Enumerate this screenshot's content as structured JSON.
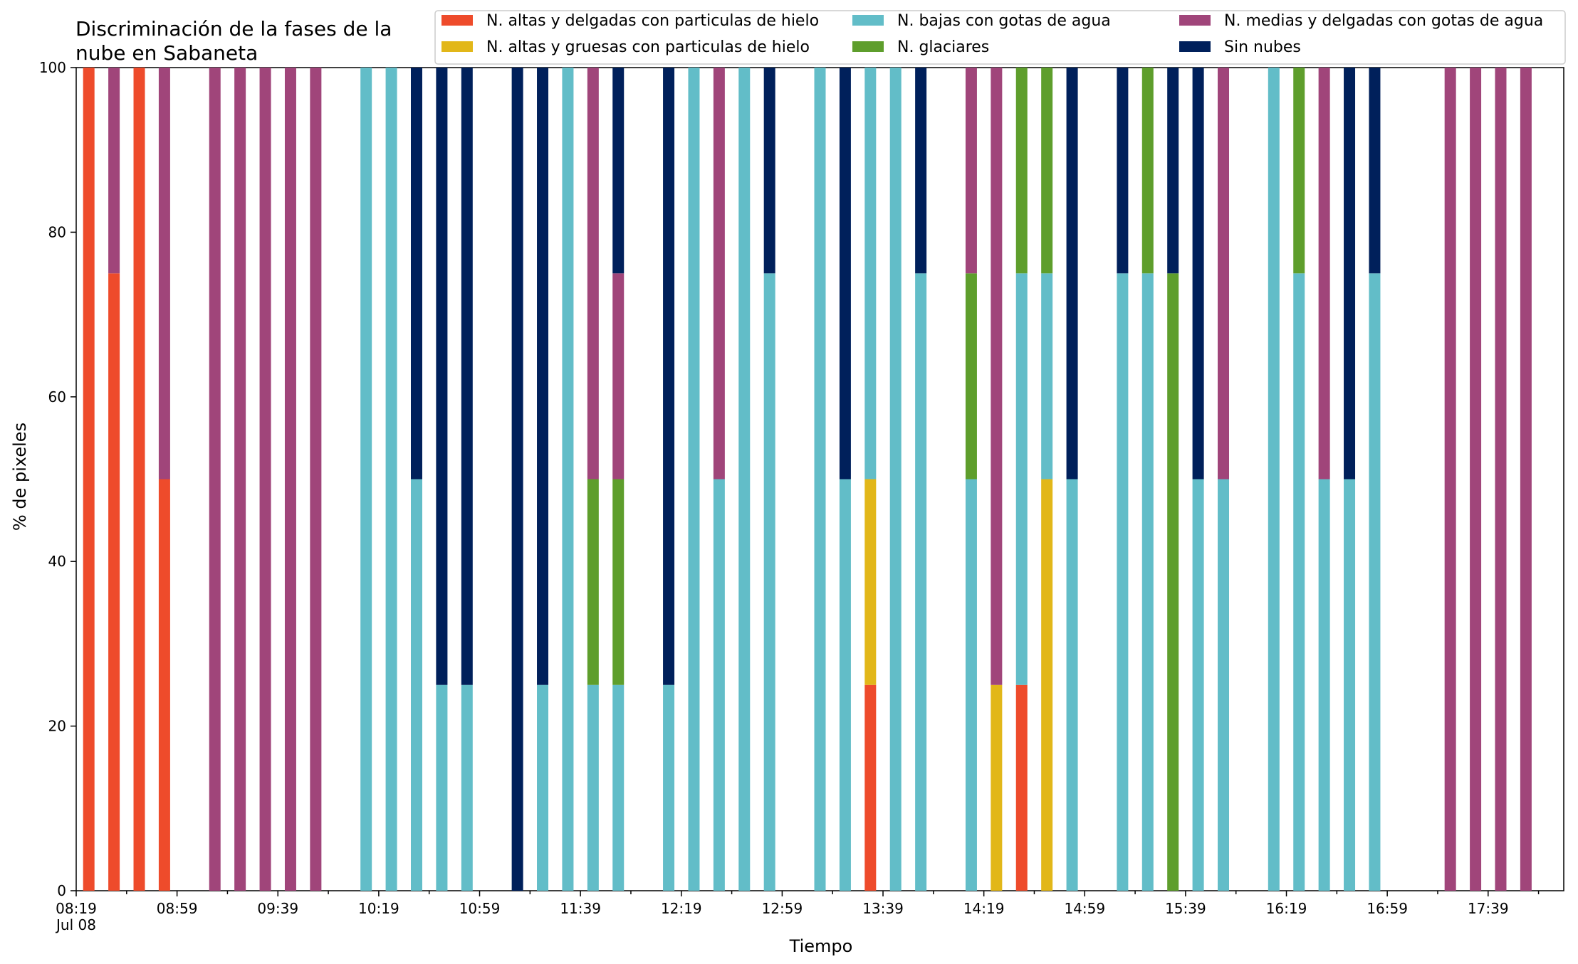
{
  "chart_data": {
    "type": "bar",
    "stacked": true,
    "title_lines": [
      "Discriminación de la fases de la",
      "nube en Sabaneta"
    ],
    "xlabel": "Tiempo",
    "ylabel": "% de pixeles",
    "ylim": [
      0,
      100
    ],
    "yticks": [
      0,
      20,
      40,
      60,
      80,
      100
    ],
    "grid": false,
    "legend_position": "top-right",
    "x_date_label": "Jul 08",
    "xlim": [
      "08:19",
      "18:09"
    ],
    "xticks": [
      "08:19",
      "08:59",
      "09:39",
      "10:19",
      "10:59",
      "11:39",
      "12:19",
      "12:59",
      "13:39",
      "14:19",
      "14:59",
      "15:39",
      "16:19",
      "16:59",
      "17:39"
    ],
    "series": [
      {
        "name": "N. altas y delgadas con particulas de hielo",
        "color": "#ee4b2b"
      },
      {
        "name": "N. altas y gruesas con particulas de hielo",
        "color": "#e2b719"
      },
      {
        "name": "N. bajas con gotas de agua",
        "color": "#62bdc8"
      },
      {
        "name": "N. glaciares",
        "color": "#5e9e2c"
      },
      {
        "name": "N. medias y delgadas con gotas de agua",
        "color": "#a0457a"
      },
      {
        "name": "Sin nubes",
        "color": "#00205b"
      }
    ],
    "bars": [
      {
        "time": "08:24",
        "values": [
          100,
          0,
          0,
          0,
          0,
          0
        ]
      },
      {
        "time": "08:34",
        "values": [
          75,
          0,
          0,
          0,
          25,
          0
        ]
      },
      {
        "time": "08:44",
        "values": [
          100,
          0,
          0,
          0,
          0,
          0
        ]
      },
      {
        "time": "08:54",
        "values": [
          50,
          0,
          0,
          0,
          50,
          0
        ]
      },
      {
        "time": "09:14",
        "values": [
          0,
          0,
          0,
          0,
          100,
          0
        ]
      },
      {
        "time": "09:24",
        "values": [
          0,
          0,
          0,
          0,
          100,
          0
        ]
      },
      {
        "time": "09:34",
        "values": [
          0,
          0,
          0,
          0,
          100,
          0
        ]
      },
      {
        "time": "09:44",
        "values": [
          0,
          0,
          0,
          0,
          100,
          0
        ]
      },
      {
        "time": "09:54",
        "values": [
          0,
          0,
          0,
          0,
          100,
          0
        ]
      },
      {
        "time": "10:14",
        "values": [
          0,
          0,
          100,
          0,
          0,
          0
        ]
      },
      {
        "time": "10:24",
        "values": [
          0,
          0,
          100,
          0,
          0,
          0
        ]
      },
      {
        "time": "10:34",
        "values": [
          0,
          0,
          50,
          0,
          0,
          50
        ]
      },
      {
        "time": "10:44",
        "values": [
          0,
          0,
          25,
          0,
          0,
          75
        ]
      },
      {
        "time": "10:54",
        "values": [
          0,
          0,
          25,
          0,
          0,
          75
        ]
      },
      {
        "time": "11:14",
        "values": [
          0,
          0,
          0,
          0,
          0,
          100
        ]
      },
      {
        "time": "11:24",
        "values": [
          0,
          0,
          25,
          0,
          0,
          75
        ]
      },
      {
        "time": "11:34",
        "values": [
          0,
          0,
          100,
          0,
          0,
          0
        ]
      },
      {
        "time": "11:44",
        "values": [
          0,
          0,
          25,
          25,
          50,
          0
        ]
      },
      {
        "time": "11:54",
        "values": [
          0,
          0,
          25,
          25,
          25,
          25
        ]
      },
      {
        "time": "12:14",
        "values": [
          0,
          0,
          25,
          0,
          0,
          75
        ]
      },
      {
        "time": "12:24",
        "values": [
          0,
          0,
          100,
          0,
          0,
          0
        ]
      },
      {
        "time": "12:34",
        "values": [
          0,
          0,
          50,
          0,
          50,
          0
        ]
      },
      {
        "time": "12:44",
        "values": [
          0,
          0,
          100,
          0,
          0,
          0
        ]
      },
      {
        "time": "12:54",
        "values": [
          0,
          0,
          75,
          0,
          0,
          25
        ]
      },
      {
        "time": "13:14",
        "values": [
          0,
          0,
          100,
          0,
          0,
          0
        ]
      },
      {
        "time": "13:24",
        "values": [
          0,
          0,
          50,
          0,
          0,
          50
        ]
      },
      {
        "time": "13:34",
        "values": [
          25,
          25,
          50,
          0,
          0,
          0
        ]
      },
      {
        "time": "13:44",
        "values": [
          0,
          0,
          100,
          0,
          0,
          0
        ]
      },
      {
        "time": "13:54",
        "values": [
          0,
          0,
          75,
          0,
          0,
          25
        ]
      },
      {
        "time": "14:14",
        "values": [
          0,
          0,
          50,
          25,
          25,
          0
        ]
      },
      {
        "time": "14:24",
        "values": [
          0,
          25,
          0,
          0,
          75,
          0
        ]
      },
      {
        "time": "14:34",
        "values": [
          25,
          0,
          50,
          25,
          0,
          0
        ]
      },
      {
        "time": "14:44",
        "values": [
          0,
          50,
          25,
          25,
          0,
          0
        ]
      },
      {
        "time": "14:54",
        "values": [
          0,
          0,
          50,
          0,
          0,
          50
        ]
      },
      {
        "time": "15:14",
        "values": [
          0,
          0,
          75,
          0,
          0,
          25
        ]
      },
      {
        "time": "15:24",
        "values": [
          0,
          0,
          75,
          25,
          0,
          0
        ]
      },
      {
        "time": "15:34",
        "values": [
          0,
          0,
          0,
          75,
          0,
          25
        ]
      },
      {
        "time": "15:44",
        "values": [
          0,
          0,
          50,
          0,
          0,
          50
        ]
      },
      {
        "time": "15:54",
        "values": [
          0,
          0,
          50,
          0,
          50,
          0
        ]
      },
      {
        "time": "16:14",
        "values": [
          0,
          0,
          100,
          0,
          0,
          0
        ]
      },
      {
        "time": "16:24",
        "values": [
          0,
          0,
          75,
          25,
          0,
          0
        ]
      },
      {
        "time": "16:34",
        "values": [
          0,
          0,
          50,
          0,
          50,
          0
        ]
      },
      {
        "time": "16:44",
        "values": [
          0,
          0,
          50,
          0,
          0,
          50
        ]
      },
      {
        "time": "16:54",
        "values": [
          0,
          0,
          75,
          0,
          0,
          25
        ]
      },
      {
        "time": "17:24",
        "values": [
          0,
          0,
          0,
          0,
          100,
          0
        ]
      },
      {
        "time": "17:34",
        "values": [
          0,
          0,
          0,
          0,
          100,
          0
        ]
      },
      {
        "time": "17:44",
        "values": [
          0,
          0,
          0,
          0,
          100,
          0
        ]
      },
      {
        "time": "17:54",
        "values": [
          0,
          0,
          0,
          0,
          100,
          0
        ]
      }
    ]
  }
}
